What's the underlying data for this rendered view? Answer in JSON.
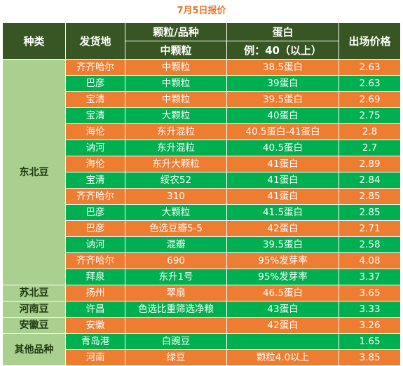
{
  "title": "7月5日报价",
  "header": {
    "category": "种类",
    "origin": "发货地",
    "grain": "颗粒/品种",
    "grain_sub": "中颗粒",
    "protein": "蛋白",
    "protein_sub": "例：40（以上）",
    "price": "出场价格"
  },
  "colors": {
    "orange": "#ed7d31",
    "green": "#00b050",
    "header": "#375623",
    "category": "#a9d08e",
    "title": "#e8742a"
  },
  "categories": [
    {
      "name": "东北豆",
      "rowspan": 14
    },
    {
      "name": "苏北豆",
      "rowspan": 1
    },
    {
      "name": "河南豆",
      "rowspan": 1
    },
    {
      "name": "安徽豆",
      "rowspan": 1
    },
    {
      "name": "其他品种",
      "rowspan": 2
    }
  ],
  "rows": [
    {
      "origin": "齐齐哈尔",
      "grain": "中颗粒",
      "protein": "38.5蛋白",
      "price": "2.63",
      "color": "orange"
    },
    {
      "origin": "巴彦",
      "grain": "中颗粒",
      "protein": "39蛋白",
      "price": "2.63",
      "color": "green"
    },
    {
      "origin": "宝清",
      "grain": "中颗粒",
      "protein": "39.5蛋白",
      "price": "2.69",
      "color": "orange"
    },
    {
      "origin": "宝清",
      "grain": "大颗粒",
      "protein": "40蛋白",
      "price": "2.75",
      "color": "green"
    },
    {
      "origin": "海伦",
      "grain": "东升混粒",
      "protein": "40.5蛋白-41蛋白",
      "price": "2.8",
      "color": "orange"
    },
    {
      "origin": "讷河",
      "grain": "东升混粒",
      "protein": "40.5蛋白",
      "price": "2.7",
      "color": "green"
    },
    {
      "origin": "海伦",
      "grain": "东升大颗粒",
      "protein": "41蛋白",
      "price": "2.89",
      "color": "orange"
    },
    {
      "origin": "宝清",
      "grain": "绥农52",
      "protein": "41蛋白",
      "price": "2.84",
      "color": "green"
    },
    {
      "origin": "齐齐哈尔",
      "grain": "310",
      "protein": "41蛋白",
      "price": "2.85",
      "color": "orange"
    },
    {
      "origin": "巴彦",
      "grain": "大颗粒",
      "protein": "41.5蛋白",
      "price": "2.85",
      "color": "green"
    },
    {
      "origin": "巴彦",
      "grain": "色选豆瓣5-5",
      "protein": "42蛋白",
      "price": "2.71",
      "color": "orange"
    },
    {
      "origin": "讷河",
      "grain": "混瓣",
      "protein": "39.5蛋白",
      "price": "2.58",
      "color": "green"
    },
    {
      "origin": "齐齐哈尔",
      "grain": "690",
      "protein": "95%发芽率",
      "price": "4.08",
      "color": "orange"
    },
    {
      "origin": "拜泉",
      "grain": "东升1号",
      "protein": "95%发芽率",
      "price": "3.37",
      "color": "green"
    },
    {
      "origin": "扬州",
      "grain": "翠扇",
      "protein": "46.5蛋白",
      "price": "3.65",
      "color": "orange"
    },
    {
      "origin": "许昌",
      "grain": "色选比重筛选净粮",
      "protein": "43蛋白",
      "price": "3.33",
      "color": "green"
    },
    {
      "origin": "安徽",
      "grain": "",
      "protein": "42蛋白",
      "price": "3.26",
      "color": "orange"
    },
    {
      "origin": "青岛港",
      "grain": "白豌豆",
      "protein": "",
      "price": "1.65",
      "color": "green"
    },
    {
      "origin": "河南",
      "grain": "绿豆",
      "protein": "颗粒4.0以上",
      "price": "3.85",
      "color": "orange"
    }
  ]
}
